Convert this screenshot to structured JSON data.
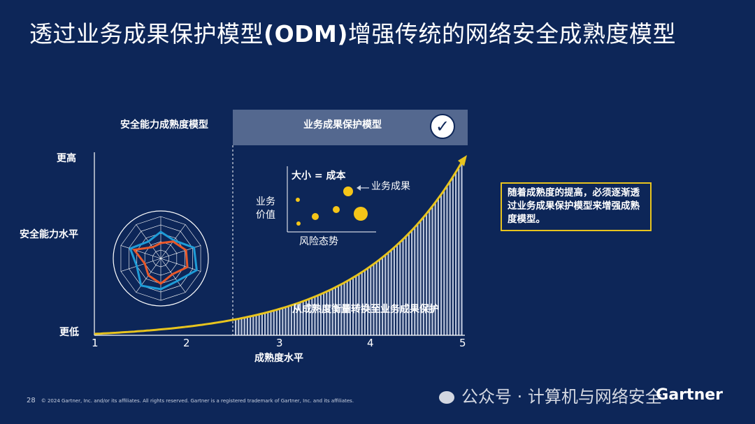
{
  "title": {
    "prefix": "透过业务成果保护模型",
    "bold": "(ODM)",
    "suffix": "增强传统的网络安全成熟度模型"
  },
  "chart": {
    "header_left": "安全能力成熟度模型",
    "header_right": "业务成果保护模型",
    "y_axis_label": "安全能力水平",
    "y_high": "更高",
    "y_low": "更低",
    "x_axis_label": "成熟度水平",
    "x_ticks": [
      "1",
      "2",
      "3",
      "4",
      "5"
    ],
    "transition_label": "从成熟度衡量转换至业务成果保护"
  },
  "inset": {
    "size_label": "大小 = 成本",
    "outcome_label": "业务成果",
    "y_label_1": "业务",
    "y_label_2": "价值",
    "x_label": "风险态势"
  },
  "callout": "随着成熟度的提高，必须逐渐透过业务成果保护模型来增强成熟度模型。",
  "colors": {
    "background": "#0d2658",
    "accent": "#e8c41e",
    "band": "#54688f",
    "radar_blue": "#1e9cd7",
    "radar_orange": "#e8582a"
  },
  "footer": {
    "page": "28",
    "copyright": "© 2024 Gartner, Inc. and/or its affiliates. All rights reserved. Gartner is a registered trademark of Gartner, Inc. and its affiliates.",
    "logo": "Gartner"
  },
  "watermark": "公众号 · 计算机与网络安全"
}
